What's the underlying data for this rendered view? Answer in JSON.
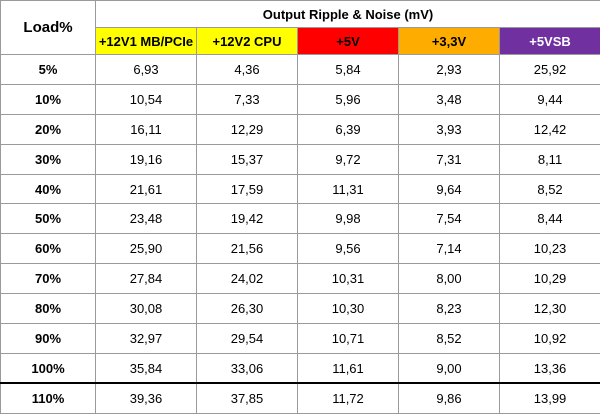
{
  "header": {
    "title": "Load%",
    "group": "Output Ripple & Noise (mV)",
    "columns": [
      {
        "label": "+12V1 MB/PCIe",
        "color": "#ffff00",
        "text": "#000000"
      },
      {
        "label": "+12V2 CPU",
        "color": "#ffff00",
        "text": "#000000"
      },
      {
        "label": "+5V",
        "color": "#ff0000",
        "text": "#000000"
      },
      {
        "label": "+3,3V",
        "color": "#ffac00",
        "text": "#000000"
      },
      {
        "label": "+5VSB",
        "color": "#7030a0",
        "text": "#ffffff"
      }
    ]
  },
  "table": {
    "rows": [
      [
        "5%",
        "6,93",
        "4,36",
        "5,84",
        "2,93",
        "25,92"
      ],
      [
        "10%",
        "10,54",
        "7,33",
        "5,96",
        "3,48",
        "9,44"
      ],
      [
        "20%",
        "16,11",
        "12,29",
        "6,39",
        "3,93",
        "12,42"
      ],
      [
        "30%",
        "19,16",
        "15,37",
        "9,72",
        "7,31",
        "8,11"
      ],
      [
        "40%",
        "21,61",
        "17,59",
        "11,31",
        "9,64",
        "8,52"
      ],
      [
        "50%",
        "23,48",
        "19,42",
        "9,98",
        "7,54",
        "8,44"
      ],
      [
        "60%",
        "25,90",
        "21,56",
        "9,56",
        "7,14",
        "10,23"
      ],
      [
        "70%",
        "27,84",
        "24,02",
        "10,31",
        "8,00",
        "10,29"
      ],
      [
        "80%",
        "30,08",
        "26,30",
        "10,30",
        "8,23",
        "12,30"
      ],
      [
        "90%",
        "32,97",
        "29,54",
        "10,71",
        "8,52",
        "10,92"
      ],
      [
        "100%",
        "35,84",
        "33,06",
        "11,61",
        "9,00",
        "13,36"
      ],
      [
        "110%",
        "39,36",
        "37,85",
        "11,72",
        "9,86",
        "13,99"
      ]
    ]
  }
}
